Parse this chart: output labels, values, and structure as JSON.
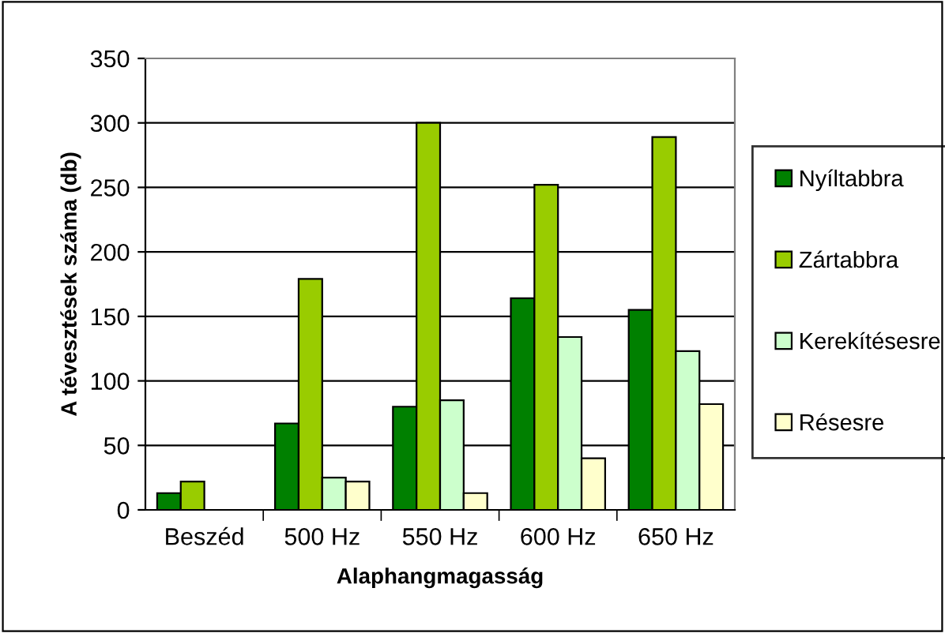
{
  "chart_data": {
    "type": "bar",
    "xlabel": "Alaphangmagasság",
    "ylabel": "A tévesztések száma (db)",
    "categories": [
      "Beszéd",
      "500 Hz",
      "550 Hz",
      "600 Hz",
      "650 Hz"
    ],
    "series": [
      {
        "name": "Nyíltabbra",
        "color": "#008000",
        "values": [
          13,
          67,
          80,
          164,
          155
        ]
      },
      {
        "name": "Zártabbra",
        "color": "#99cc00",
        "values": [
          22,
          179,
          300,
          252,
          289
        ]
      },
      {
        "name": "Kerekítésesre",
        "color": "#ccffcc",
        "values": [
          null,
          25,
          85,
          134,
          123
        ]
      },
      {
        "name": "Résesre",
        "color": "#ffffcc",
        "values": [
          null,
          22,
          13,
          40,
          82
        ]
      }
    ],
    "ylim": [
      0,
      350
    ],
    "yticks": [
      0,
      50,
      100,
      150,
      200,
      250,
      300,
      350
    ],
    "grid": "y",
    "legend": "right"
  }
}
